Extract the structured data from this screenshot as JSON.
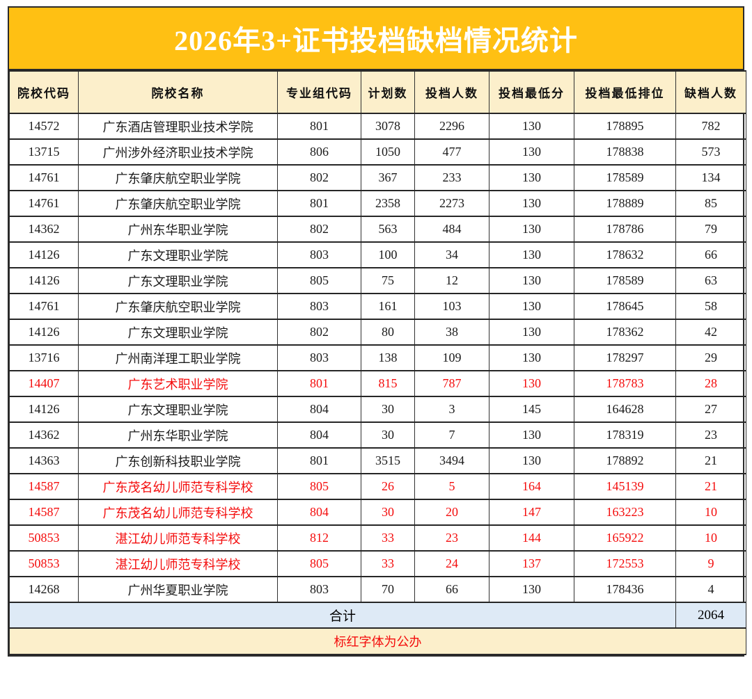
{
  "title": "2026年3+证书投档缺档情况统计",
  "colors": {
    "title_bg": "#FFC013",
    "header_bg": "#FCEFCB",
    "total_bg": "#DEEAF6",
    "note_bg": "#FCEFCB",
    "red_text": "#F40C0C",
    "border": "#2A2A2A"
  },
  "table": {
    "columns": [
      "院校代码",
      "院校名称",
      "专业组代码",
      "计划数",
      "投档人数",
      "投档最低分",
      "投档最低排位",
      "缺档人数"
    ],
    "column_keys": [
      "code",
      "name",
      "group-code",
      "plan-count",
      "filed-count",
      "min-score",
      "min-rank",
      "shortage-count"
    ],
    "rows": [
      {
        "red": false,
        "cells": [
          "14572",
          "广东酒店管理职业技术学院",
          "801",
          "3078",
          "2296",
          "130",
          "178895",
          "782"
        ]
      },
      {
        "red": false,
        "cells": [
          "13715",
          "广州涉外经济职业技术学院",
          "806",
          "1050",
          "477",
          "130",
          "178838",
          "573"
        ]
      },
      {
        "red": false,
        "cells": [
          "14761",
          "广东肇庆航空职业学院",
          "802",
          "367",
          "233",
          "130",
          "178589",
          "134"
        ]
      },
      {
        "red": false,
        "cells": [
          "14761",
          "广东肇庆航空职业学院",
          "801",
          "2358",
          "2273",
          "130",
          "178889",
          "85"
        ]
      },
      {
        "red": false,
        "cells": [
          "14362",
          "广州东华职业学院",
          "802",
          "563",
          "484",
          "130",
          "178786",
          "79"
        ]
      },
      {
        "red": false,
        "cells": [
          "14126",
          "广东文理职业学院",
          "803",
          "100",
          "34",
          "130",
          "178632",
          "66"
        ]
      },
      {
        "red": false,
        "cells": [
          "14126",
          "广东文理职业学院",
          "805",
          "75",
          "12",
          "130",
          "178589",
          "63"
        ]
      },
      {
        "red": false,
        "cells": [
          "14761",
          "广东肇庆航空职业学院",
          "803",
          "161",
          "103",
          "130",
          "178645",
          "58"
        ]
      },
      {
        "red": false,
        "cells": [
          "14126",
          "广东文理职业学院",
          "802",
          "80",
          "38",
          "130",
          "178362",
          "42"
        ]
      },
      {
        "red": false,
        "cells": [
          "13716",
          "广州南洋理工职业学院",
          "803",
          "138",
          "109",
          "130",
          "178297",
          "29"
        ]
      },
      {
        "red": true,
        "cells": [
          "14407",
          "广东艺术职业学院",
          "801",
          "815",
          "787",
          "130",
          "178783",
          "28"
        ]
      },
      {
        "red": false,
        "cells": [
          "14126",
          "广东文理职业学院",
          "804",
          "30",
          "3",
          "145",
          "164628",
          "27"
        ]
      },
      {
        "red": false,
        "cells": [
          "14362",
          "广州东华职业学院",
          "804",
          "30",
          "7",
          "130",
          "178319",
          "23"
        ]
      },
      {
        "red": false,
        "cells": [
          "14363",
          "广东创新科技职业学院",
          "801",
          "3515",
          "3494",
          "130",
          "178892",
          "21"
        ]
      },
      {
        "red": true,
        "cells": [
          "14587",
          "广东茂名幼儿师范专科学校",
          "805",
          "26",
          "5",
          "164",
          "145139",
          "21"
        ]
      },
      {
        "red": true,
        "cells": [
          "14587",
          "广东茂名幼儿师范专科学校",
          "804",
          "30",
          "20",
          "147",
          "163223",
          "10"
        ]
      },
      {
        "red": true,
        "cells": [
          "50853",
          "湛江幼儿师范专科学校",
          "812",
          "33",
          "23",
          "144",
          "165922",
          "10"
        ]
      },
      {
        "red": true,
        "cells": [
          "50853",
          "湛江幼儿师范专科学校",
          "805",
          "33",
          "24",
          "137",
          "172553",
          "9"
        ]
      },
      {
        "red": false,
        "cells": [
          "14268",
          "广州华夏职业学院",
          "803",
          "70",
          "66",
          "130",
          "178436",
          "4"
        ]
      }
    ],
    "total_label": "合计",
    "total_value": "2064",
    "note": "标红字体为公办"
  }
}
